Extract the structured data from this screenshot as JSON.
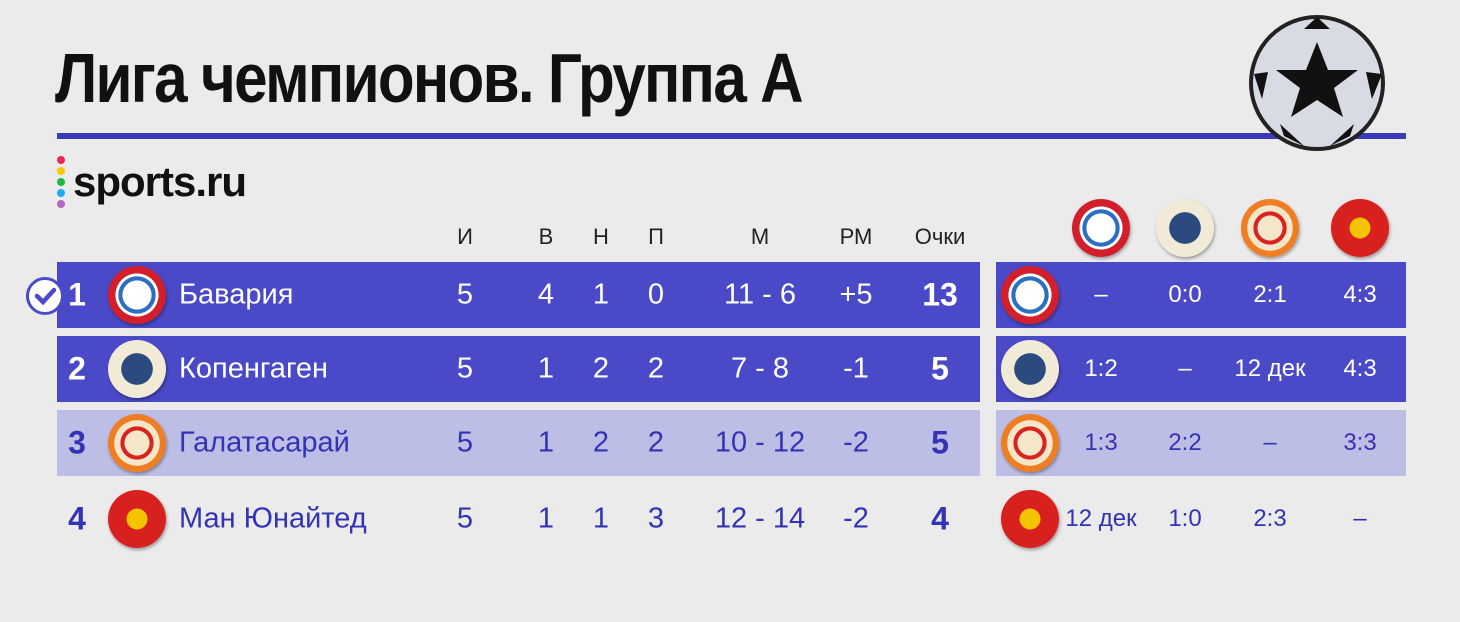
{
  "title": "Лига чемпионов. Группа А",
  "brand": {
    "name": "sports.ru",
    "dot_colors": [
      "#f0245a",
      "#f9c600",
      "#1fb844",
      "#1aaee8",
      "#b06ac2"
    ]
  },
  "colors": {
    "accent": "#4a4ac8",
    "light_row": "#bdbee6",
    "text_blue": "#3333b5",
    "background": "#ebebeb"
  },
  "columns": [
    "И",
    "В",
    "Н",
    "П",
    "М",
    "РМ",
    "Очки"
  ],
  "rows": [
    {
      "pos": "1",
      "team": "Бавария",
      "crest": "bayern-crest",
      "played": "5",
      "w": "4",
      "d": "1",
      "l": "0",
      "goals": "11 - 6",
      "gd": "+5",
      "pts": "13",
      "qualified": true,
      "style": "dark"
    },
    {
      "pos": "2",
      "team": "Копенгаген",
      "crest": "copenhagen-crest",
      "played": "5",
      "w": "1",
      "d": "2",
      "l": "2",
      "goals": "7 - 8",
      "gd": "-1",
      "pts": "5",
      "style": "dark"
    },
    {
      "pos": "3",
      "team": "Галатасарай",
      "crest": "galatasaray-crest",
      "played": "5",
      "w": "1",
      "d": "2",
      "l": "2",
      "goals": "10 - 12",
      "gd": "-2",
      "pts": "5",
      "style": "light"
    },
    {
      "pos": "4",
      "team": "Ман Юнайтед",
      "crest": "manutd-crest",
      "played": "5",
      "w": "1",
      "d": "1",
      "l": "3",
      "goals": "12 - 14",
      "gd": "-2",
      "pts": "4",
      "style": "none"
    }
  ],
  "matrix": [
    [
      "–",
      "0:0",
      "2:1",
      "4:3"
    ],
    [
      "1:2",
      "–",
      "12 дек",
      "4:3"
    ],
    [
      "1:3",
      "2:2",
      "–",
      "3:3"
    ],
    [
      "12 дек",
      "1:0",
      "2:3",
      "–"
    ]
  ]
}
